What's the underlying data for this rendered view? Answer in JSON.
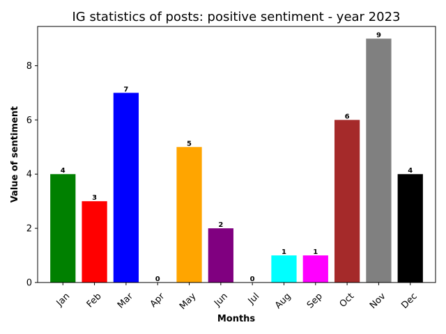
{
  "chart_data": {
    "type": "bar",
    "title": "IG statistics of posts: positive sentiment - year 2023",
    "xlabel": "Months",
    "ylabel": "Value of sentiment",
    "categories": [
      "Jan",
      "Feb",
      "Mar",
      "Apr",
      "May",
      "Jun",
      "Jul",
      "Aug",
      "Sep",
      "Oct",
      "Nov",
      "Dec"
    ],
    "values": [
      4,
      3,
      7,
      0,
      5,
      2,
      0,
      1,
      1,
      6,
      9,
      4
    ],
    "colors": [
      "#008000",
      "#ff0000",
      "#0000ff",
      "#ffffff",
      "#ffa500",
      "#800080",
      "#ffffff",
      "#00ffff",
      "#ff00ff",
      "#a52a2a",
      "#808080",
      "#000000"
    ],
    "ylim": [
      0,
      9.45
    ],
    "yticks": [
      0,
      2,
      4,
      6,
      8
    ],
    "grid": false,
    "legend": "none"
  }
}
